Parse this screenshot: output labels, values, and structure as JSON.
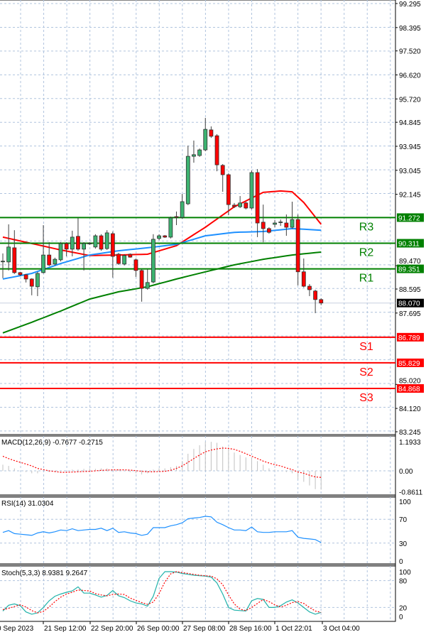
{
  "chart_data": {
    "type": "candlestick",
    "symbol_pane": {
      "y_ticks": [
        "99.295",
        "98.395",
        "97.520",
        "96.620",
        "95.720",
        "94.845",
        "93.945",
        "93.045",
        "92.145",
        "89.470",
        "88.595",
        "87.695",
        "85.020",
        "84.120",
        "83.245"
      ],
      "ylim": [
        83.245,
        99.295
      ],
      "grid": true,
      "current_price": "88.070",
      "candles": [
        [
          89.62,
          89.93,
          89.0,
          89.64
        ],
        [
          89.61,
          91.02,
          89.29,
          90.17
        ],
        [
          90.14,
          90.8,
          89.16,
          89.21
        ],
        [
          89.21,
          89.24,
          89.08,
          89.13
        ],
        [
          89.13,
          89.16,
          88.84,
          88.97
        ],
        [
          88.97,
          89.0,
          88.36,
          88.7
        ],
        [
          88.68,
          89.24,
          88.33,
          89.18
        ],
        [
          89.21,
          90.99,
          89.18,
          89.87
        ],
        [
          89.87,
          90.35,
          89.45,
          89.5
        ],
        [
          89.53,
          89.77,
          89.48,
          89.71
        ],
        [
          89.69,
          90.35,
          89.63,
          90.3
        ],
        [
          90.3,
          90.35,
          89.82,
          90.09
        ],
        [
          90.09,
          90.78,
          89.82,
          90.54
        ],
        [
          90.57,
          91.26,
          90.03,
          90.09
        ],
        [
          90.09,
          90.35,
          89.29,
          90.3
        ],
        [
          90.3,
          90.35,
          90.25,
          90.31
        ],
        [
          90.17,
          90.65,
          90.11,
          90.59
        ],
        [
          90.59,
          90.65,
          90.03,
          90.09
        ],
        [
          90.11,
          90.8,
          90.06,
          90.7
        ],
        [
          90.67,
          90.75,
          89.02,
          89.82
        ],
        [
          89.9,
          89.95,
          89.5,
          89.55
        ],
        [
          89.53,
          89.9,
          89.48,
          89.85
        ],
        [
          89.9,
          89.93,
          89.77,
          89.79
        ],
        [
          89.69,
          89.74,
          89.05,
          89.29
        ],
        [
          89.29,
          89.34,
          88.12,
          88.62
        ],
        [
          88.62,
          89.34,
          88.57,
          88.84
        ],
        [
          88.86,
          90.65,
          88.81,
          90.46
        ],
        [
          90.49,
          90.65,
          90.43,
          90.59
        ],
        [
          90.59,
          90.62,
          90.51,
          90.54
        ],
        [
          90.54,
          91.31,
          90.49,
          91.26
        ],
        [
          91.31,
          91.5,
          90.99,
          91.28
        ],
        [
          91.28,
          92.16,
          91.23,
          91.87
        ],
        [
          91.79,
          93.97,
          91.74,
          93.57
        ],
        [
          93.57,
          94.16,
          93.33,
          93.63
        ],
        [
          93.6,
          93.86,
          93.55,
          93.81
        ],
        [
          93.81,
          95.01,
          93.76,
          94.58
        ],
        [
          94.56,
          94.69,
          94.26,
          94.32
        ],
        [
          94.34,
          94.4,
          93.01,
          93.25
        ],
        [
          93.23,
          93.28,
          92.24,
          92.88
        ],
        [
          92.88,
          92.93,
          91.36,
          91.76
        ],
        [
          91.74,
          91.82,
          91.63,
          91.68
        ],
        [
          91.68,
          92.08,
          91.63,
          91.82
        ],
        [
          91.82,
          91.87,
          91.58,
          91.63
        ],
        [
          91.63,
          93.04,
          91.58,
          92.96
        ],
        [
          92.96,
          93.09,
          90.54,
          91.07
        ],
        [
          91.1,
          91.76,
          90.35,
          90.86
        ],
        [
          90.86,
          90.91,
          90.67,
          90.72
        ],
        [
          91.02,
          91.18,
          90.91,
          91.07
        ],
        [
          91.1,
          91.2,
          90.96,
          91.11
        ],
        [
          91.07,
          91.39,
          90.59,
          90.91
        ],
        [
          90.91,
          91.87,
          90.86,
          91.2
        ],
        [
          91.2,
          91.39,
          88.73,
          89.24
        ],
        [
          89.24,
          89.74,
          88.65,
          88.7
        ],
        [
          88.7,
          88.78,
          88.33,
          88.57
        ],
        [
          88.52,
          88.57,
          87.69,
          88.2
        ],
        [
          88.2,
          88.25,
          87.99,
          88.07
        ]
      ],
      "moving_averages": [
        {
          "color": "#ff0000",
          "points": [
            [
              0,
              90.54
            ],
            [
              5,
              90.3
            ],
            [
              10,
              90.06
            ],
            [
              15,
              89.85
            ],
            [
              20,
              89.87
            ],
            [
              25,
              89.9
            ],
            [
              30,
              90.22
            ],
            [
              35,
              90.91
            ],
            [
              40,
              91.68
            ],
            [
              45,
              92.22
            ],
            [
              48,
              92.27
            ],
            [
              50,
              92.24
            ],
            [
              52,
              91.84
            ],
            [
              55,
              91.02
            ]
          ]
        },
        {
          "color": "#1e90ff",
          "points": [
            [
              0,
              88.97
            ],
            [
              5,
              89.18
            ],
            [
              10,
              89.55
            ],
            [
              15,
              89.87
            ],
            [
              20,
              90.03
            ],
            [
              25,
              90.14
            ],
            [
              30,
              90.27
            ],
            [
              35,
              90.59
            ],
            [
              40,
              90.72
            ],
            [
              45,
              90.75
            ],
            [
              50,
              90.86
            ],
            [
              55,
              90.8
            ]
          ]
        },
        {
          "color": "#008000",
          "points": [
            [
              0,
              86.95
            ],
            [
              5,
              87.35
            ],
            [
              10,
              87.77
            ],
            [
              15,
              88.22
            ],
            [
              20,
              88.49
            ],
            [
              25,
              88.68
            ],
            [
              30,
              88.97
            ],
            [
              35,
              89.24
            ],
            [
              40,
              89.5
            ],
            [
              45,
              89.71
            ],
            [
              50,
              89.87
            ],
            [
              55,
              89.98
            ]
          ]
        }
      ],
      "levels": [
        {
          "name": "R3",
          "value": "91.272",
          "color": "#008000"
        },
        {
          "name": "R2",
          "value": "90.311",
          "color": "#008000"
        },
        {
          "name": "R1",
          "value": "89.351",
          "color": "#008000"
        },
        {
          "name": "S1",
          "value": "86.789",
          "color": "#ff0000"
        },
        {
          "name": "S2",
          "value": "85.829",
          "color": "#ff0000"
        },
        {
          "name": "S3",
          "value": "84.868",
          "color": "#ff0000"
        }
      ]
    },
    "macd": {
      "label": "MACD(12,26,9) -0.7677 -0.2715",
      "y_ticks": [
        "1.1933",
        "0.00",
        "-0.8611"
      ],
      "ylim": [
        -0.8611,
        1.1933
      ],
      "histogram": [
        0.25,
        0.2,
        0.1,
        0,
        -0.05,
        -0.1,
        -0.1,
        0,
        -0.05,
        -0.05,
        -0.03,
        0,
        0.05,
        0.05,
        0.08,
        0.1,
        0.08,
        0.1,
        0.1,
        0.05,
        0.05,
        0,
        -0.05,
        -0.1,
        -0.15,
        -0.1,
        0.05,
        0.1,
        0.1,
        0.15,
        0.2,
        0.4,
        0.7,
        0.9,
        1.05,
        1.19,
        1.19,
        1.15,
        1.0,
        0.95,
        0.75,
        0.65,
        0.55,
        0.55,
        0.4,
        0.25,
        0.1,
        0.05,
        0,
        -0.05,
        -0.1,
        -0.35,
        -0.45,
        -0.6,
        -0.75,
        -0.77
      ],
      "signal": [
        0.6,
        0.5,
        0.42,
        0.35,
        0.28,
        0.2,
        0.1,
        0.05,
        0,
        -0.03,
        -0.06,
        -0.06,
        -0.05,
        -0.04,
        -0.03,
        -0.02,
        0,
        0.02,
        0.03,
        0.04,
        0.04,
        0.04,
        0.03,
        0.01,
        -0.02,
        -0.04,
        -0.04,
        -0.03,
        -0.02,
        0.02,
        0.1,
        0.2,
        0.35,
        0.5,
        0.65,
        0.78,
        0.85,
        0.9,
        0.93,
        0.92,
        0.88,
        0.8,
        0.7,
        0.6,
        0.5,
        0.4,
        0.32,
        0.25,
        0.2,
        0.12,
        0.05,
        -0.05,
        -0.1,
        -0.18,
        -0.25,
        -0.27
      ]
    },
    "rsi": {
      "label": "RSI(14) 31.0304",
      "y_ticks": [
        "100",
        "70",
        "30",
        "0"
      ],
      "ylim": [
        0,
        100
      ],
      "values": [
        48,
        51,
        46,
        45,
        44,
        43,
        47,
        49,
        47,
        49,
        52,
        51,
        54,
        51,
        52,
        53,
        53,
        55,
        51,
        55,
        48,
        49,
        47,
        46,
        43,
        45,
        56,
        56,
        56,
        59,
        61,
        64,
        71,
        72,
        73,
        75,
        74,
        65,
        61,
        56,
        52,
        52,
        51,
        57,
        49,
        48,
        48,
        49,
        49,
        49,
        51,
        40,
        38,
        37,
        36,
        31
      ]
    },
    "stoch": {
      "label": "Stoch(5,3,3) 8.9381 9.2647",
      "y_ticks": [
        "100",
        "80",
        "20",
        "0"
      ],
      "ylim": [
        0,
        100
      ],
      "k": [
        12,
        25,
        28,
        24,
        10,
        5,
        8,
        20,
        35,
        45,
        50,
        54,
        57,
        66,
        52,
        52,
        48,
        43,
        47,
        58,
        46,
        42,
        35,
        30,
        28,
        23,
        45,
        85,
        100,
        100,
        99,
        96,
        94,
        92,
        91,
        90,
        88,
        75,
        50,
        20,
        14,
        13,
        12,
        35,
        40,
        38,
        20,
        20,
        24,
        32,
        37,
        30,
        20,
        10,
        5,
        9
      ],
      "d": [
        15,
        18,
        22,
        26,
        21,
        13,
        8,
        11,
        21,
        33,
        43,
        50,
        54,
        59,
        58,
        57,
        51,
        48,
        46,
        49,
        50,
        49,
        41,
        36,
        31,
        27,
        32,
        51,
        77,
        95,
        100,
        98,
        96,
        94,
        92,
        91,
        90,
        84,
        71,
        48,
        28,
        16,
        13,
        20,
        29,
        38,
        33,
        26,
        21,
        25,
        31,
        33,
        29,
        20,
        12,
        9
      ]
    },
    "x_ticks": [
      "0 Sep 2023",
      "21 Sep 12:00",
      "22 Sep 20:00",
      "26 Sep 00:00",
      "27 Sep 08:00",
      "28 Sep 16:00",
      "1 Oct 22:01",
      "3 Oct 04:00"
    ],
    "colors": {
      "bull": "#3cb371",
      "bear": "#ff0000",
      "grid": "#b0c4de",
      "macd_hist": "#c0c0c0",
      "macd_signal": "#ff0000",
      "rsi": "#1e90ff",
      "stoch_k": "#20b2aa",
      "stoch_d": "#ff0000"
    }
  }
}
